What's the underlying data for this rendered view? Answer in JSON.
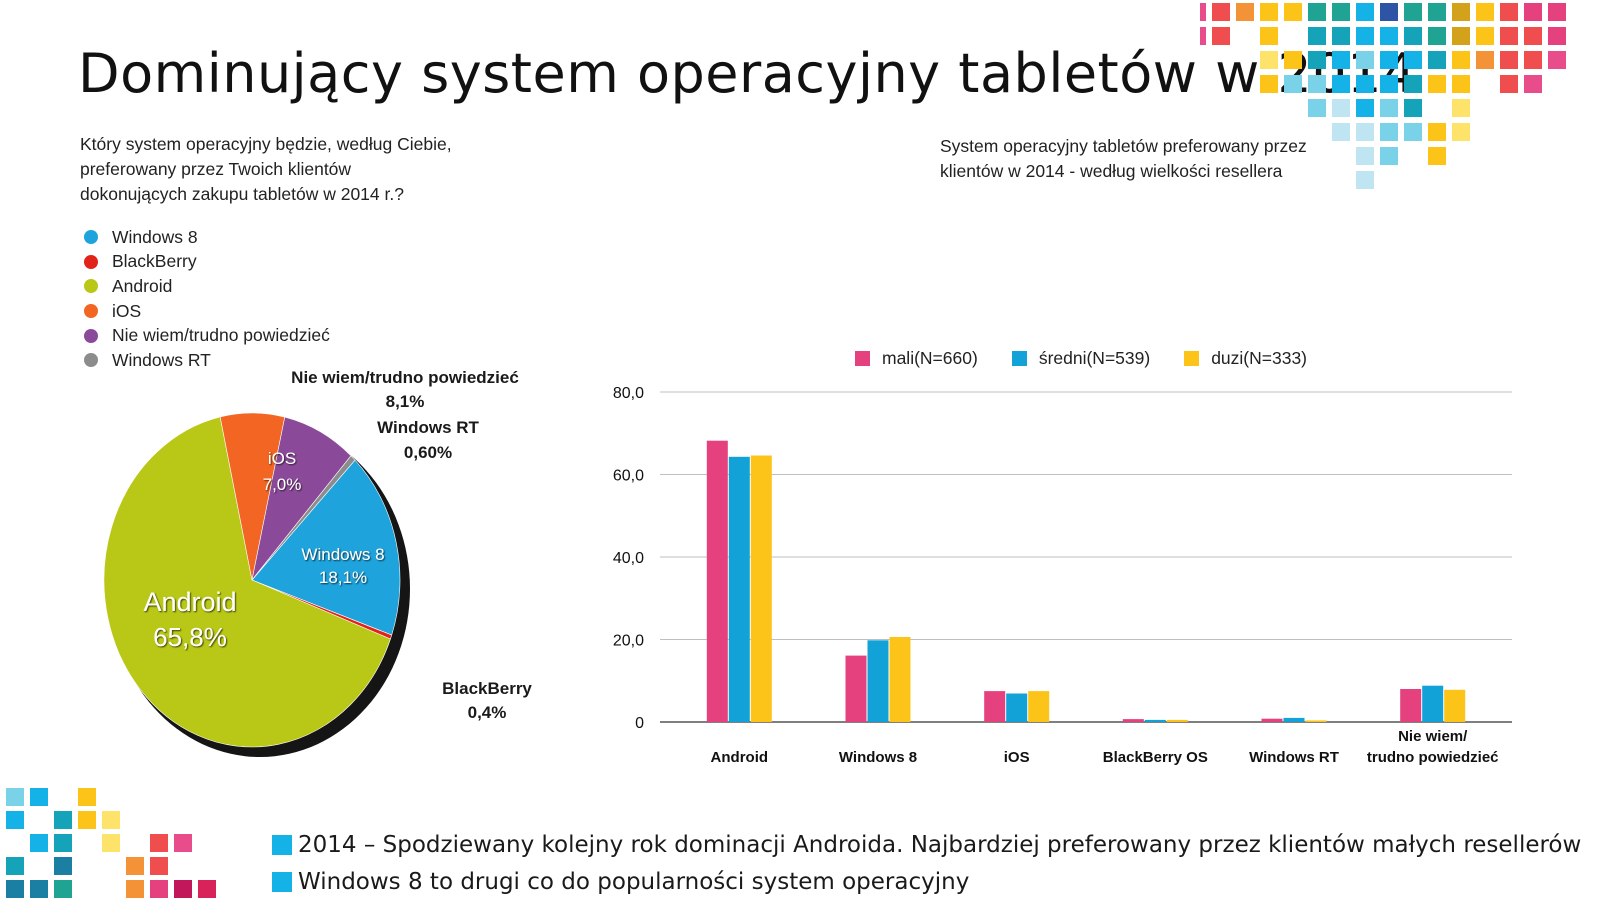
{
  "title": "Dominujący system operacyjny tabletów w 2014",
  "pie": {
    "question_lines": [
      "Który system operacyjny będzie, według Ciebie,",
      "preferowany przez Twoich klientów",
      "dokonujących zakupu tabletów w 2014 r.?"
    ],
    "legend": [
      {
        "label": "Windows 8",
        "color": "#1fa3dc"
      },
      {
        "label": "BlackBerry",
        "color": "#e2231a"
      },
      {
        "label": "Android",
        "color": "#b9c816"
      },
      {
        "label": "iOS",
        "color": "#f26522"
      },
      {
        "label": "Nie wiem/trudno powiedzieć",
        "color": "#8b4a99"
      },
      {
        "label": "Windows RT",
        "color": "#8c8c8c"
      }
    ],
    "labels": {
      "android": {
        "name": "Android",
        "value": "65,8%"
      },
      "windows8": {
        "name": "Windows 8",
        "value": "18,1%"
      },
      "ios": {
        "name": "iOS",
        "value": "7,0%"
      },
      "niewiem": {
        "name": "Nie wiem/trudno powiedzieć",
        "value": "8,1%"
      },
      "windowsrt": {
        "name": "Windows RT",
        "value": "0,60%"
      },
      "blackberry": {
        "name": "BlackBerry",
        "value": "0,4%"
      }
    }
  },
  "bar": {
    "title_lines": [
      "System operacyjny tabletów preferowany przez",
      "klientów w 2014 - według wielkości resellera"
    ],
    "legend": [
      {
        "label": "mali(N=660)",
        "color": "#e6417f"
      },
      {
        "label": "średni(N=539)",
        "color": "#12a2d8"
      },
      {
        "label": "duzi(N=333)",
        "color": "#fcc419"
      }
    ],
    "y_tick_labels": [
      "80,0",
      "60,0",
      "40,0",
      "20,0",
      "0"
    ],
    "category_labels": [
      [
        "Android"
      ],
      [
        "Windows 8"
      ],
      [
        "iOS"
      ],
      [
        "BlackBerry OS"
      ],
      [
        "Windows RT"
      ],
      [
        "Nie wiem/",
        "trudno powiedzieć"
      ]
    ]
  },
  "chart_data": [
    {
      "type": "pie",
      "title": "Który system operacyjny będzie, według Ciebie, preferowany przez Twoich klientów dokonujących zakupu tabletów w 2014 r.?",
      "slices": [
        {
          "label": "Windows 8",
          "value": 18.1,
          "color": "#1fa3dc"
        },
        {
          "label": "BlackBerry",
          "value": 0.4,
          "color": "#e2231a"
        },
        {
          "label": "Android",
          "value": 65.8,
          "color": "#b9c816"
        },
        {
          "label": "iOS",
          "value": 7.0,
          "color": "#f26522"
        },
        {
          "label": "Nie wiem/trudno powiedzieć",
          "value": 8.1,
          "color": "#8b4a99"
        },
        {
          "label": "Windows RT",
          "value": 0.6,
          "color": "#8c8c8c"
        }
      ],
      "legend_placement": "top-left"
    },
    {
      "type": "bar",
      "title": "System operacyjny tabletów preferowany przez klientów w 2014 - według wielkości resellera",
      "categories": [
        "Android",
        "Windows 8",
        "iOS",
        "BlackBerry OS",
        "Windows RT",
        "Nie wiem/ trudno powiedzieć"
      ],
      "series": [
        {
          "name": "mali(N=660)",
          "color": "#e6417f",
          "values": [
            68.2,
            16.1,
            7.5,
            0.7,
            0.8,
            8.0
          ]
        },
        {
          "name": "średni(N=539)",
          "color": "#12a2d8",
          "values": [
            64.3,
            19.8,
            6.9,
            0.5,
            1.0,
            8.8
          ]
        },
        {
          "name": "duzi(N=333)",
          "color": "#fcc419",
          "values": [
            64.6,
            20.6,
            7.5,
            0.5,
            0.4,
            7.8
          ]
        }
      ],
      "ylim": [
        0,
        80
      ],
      "y_ticks": [
        0,
        20,
        40,
        60,
        80
      ],
      "grid": true,
      "legend_placement": "top"
    }
  ],
  "notes": [
    {
      "text": "2014 – Spodziewany kolejny rok dominacji Androida. Najbardziej preferowany przez klientów małych resellerów",
      "color": "#14b2e6"
    },
    {
      "text": "Windows 8 to drugi co do popularności system operacyjny",
      "color": "#14b2e6"
    }
  ],
  "decoration": {
    "palette": [
      "#e84c8b",
      "#f04e4e",
      "#f39237",
      "#fcc419",
      "#fde36a",
      "#14a3b8",
      "#14b2e6",
      "#7ad2e8",
      "#bfe4f2",
      "#1fa392",
      "#1b7ea3",
      "#2e55a5",
      "#d4a21a",
      "#e6417f",
      "#c2185b",
      "#d7225a"
    ]
  }
}
